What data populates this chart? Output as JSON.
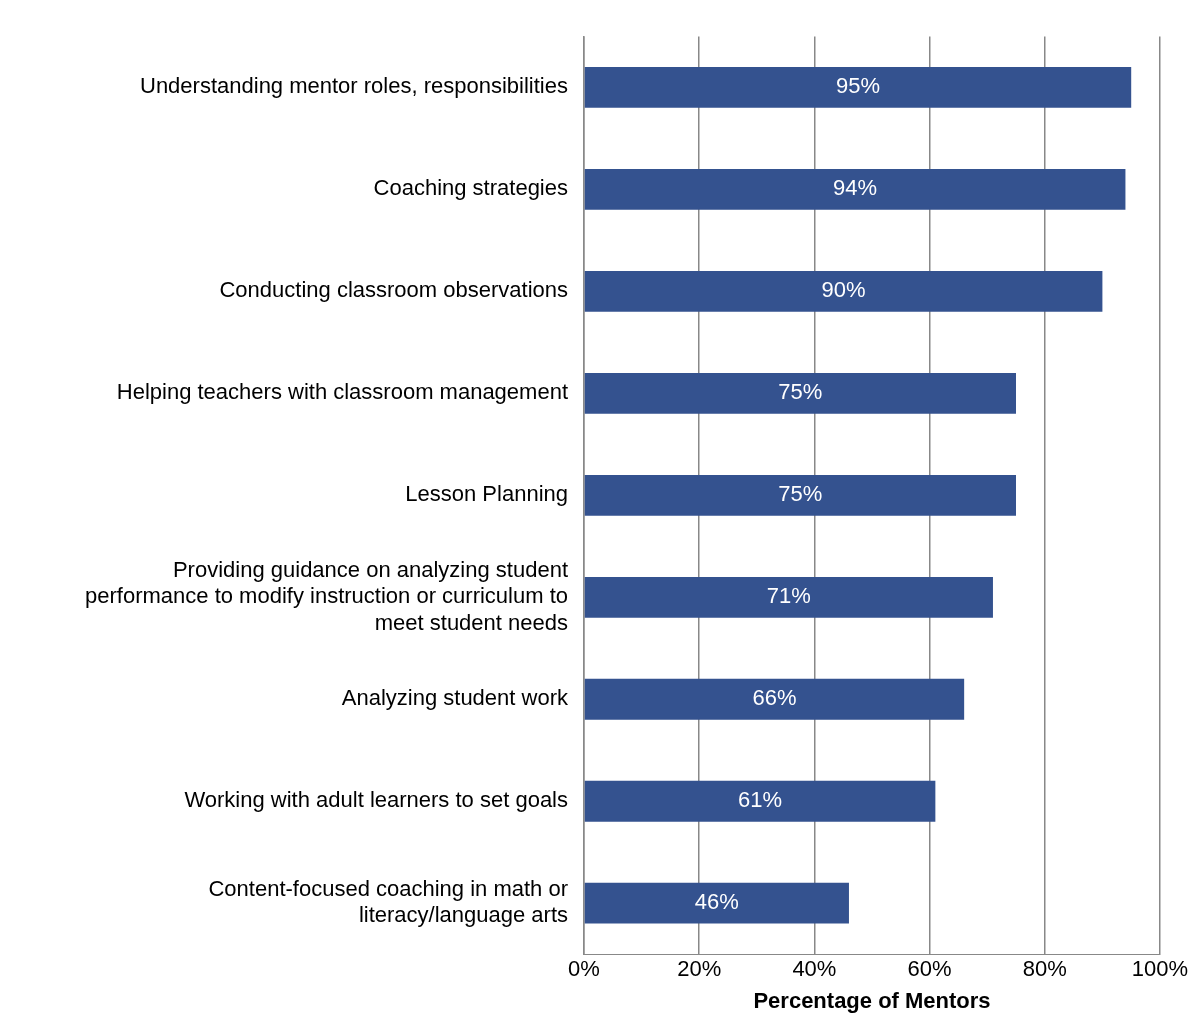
{
  "chart_data": {
    "type": "bar",
    "orientation": "horizontal",
    "xlabel": "Percentage of Mentors",
    "categories": [
      "Understanding mentor roles, responsibilities",
      "Coaching strategies",
      "Conducting classroom observations",
      "Helping teachers with classroom management",
      "Lesson Planning",
      "Providing guidance on analyzing student performance to modify instruction or curriculum to meet student needs",
      "Analyzing student work",
      "Working with adult learners to set goals",
      "Content-focused coaching in math or literacy/language arts"
    ],
    "values": [
      95,
      94,
      90,
      75,
      75,
      71,
      66,
      61,
      46
    ],
    "value_labels": [
      "95%",
      "94%",
      "90%",
      "75%",
      "75%",
      "71%",
      "66%",
      "61%",
      "46%"
    ],
    "color": "#34528f",
    "xlim": [
      0,
      100
    ],
    "xticks": [
      {
        "value": 0,
        "label": "0%"
      },
      {
        "value": 20,
        "label": "20%"
      },
      {
        "value": 40,
        "label": "40%"
      },
      {
        "value": 60,
        "label": "60%"
      },
      {
        "value": 80,
        "label": "80%"
      },
      {
        "value": 100,
        "label": "100%"
      }
    ],
    "grid": "x",
    "legend": false
  }
}
